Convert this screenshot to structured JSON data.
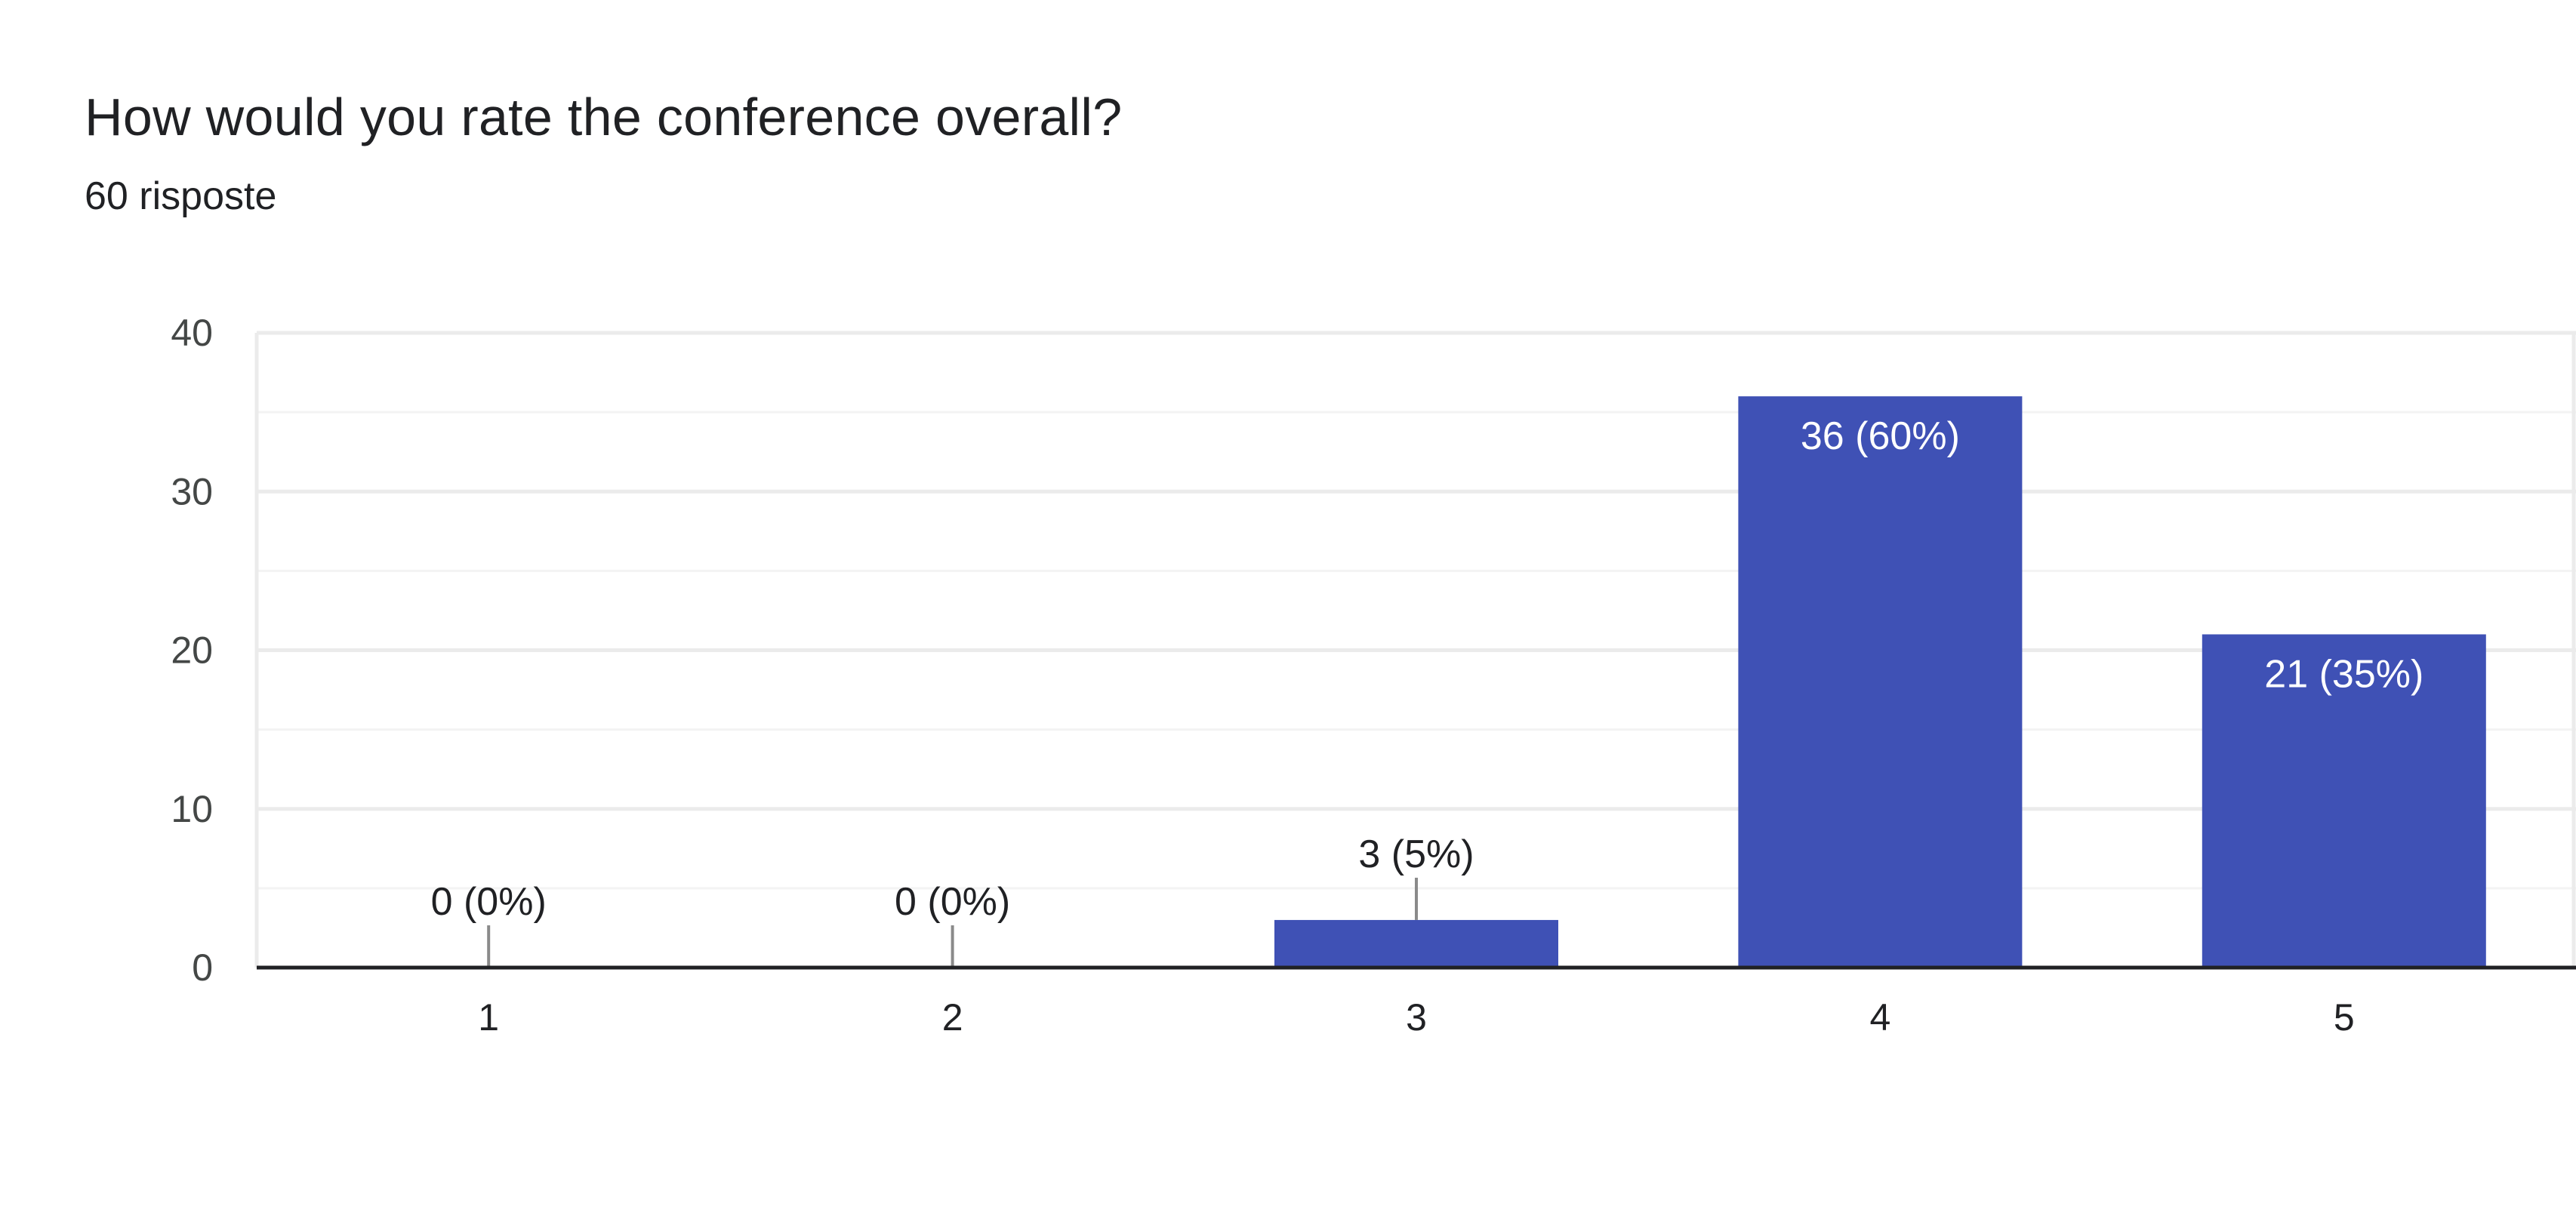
{
  "question": {
    "title": "How would you rate the conference overall?",
    "responses": "60 risposte"
  },
  "chart_data": {
    "type": "bar",
    "categories": [
      "1",
      "2",
      "3",
      "4",
      "5"
    ],
    "values": [
      0,
      0,
      3,
      36,
      21
    ],
    "data_labels": [
      "0 (0%)",
      "0 (0%)",
      "3 (5%)",
      "36 (60%)",
      "21 (35%)"
    ],
    "y_ticks": [
      "0",
      "10",
      "20",
      "30",
      "40"
    ],
    "ylim": [
      0,
      40
    ],
    "grid": true,
    "bar_color": "#3f51b5",
    "xlabel": "",
    "ylabel": ""
  }
}
